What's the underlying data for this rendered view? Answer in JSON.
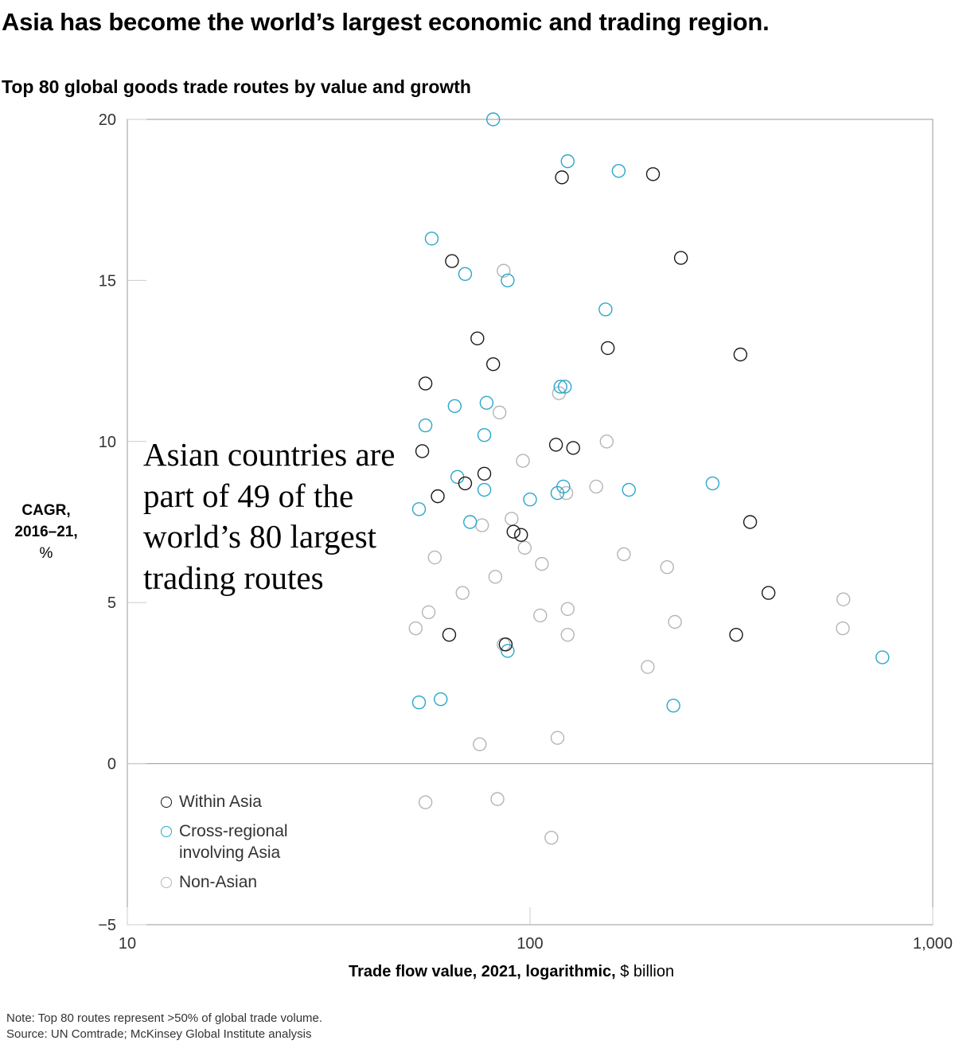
{
  "title": "Asia has become the world’s largest economic and trading region.",
  "subtitle": "Top 80 global goods trade routes by value and growth",
  "annotation": "Asian countries are part of 49 of the world’s 80 largest trading routes",
  "note": "Note: Top 80 routes represent >50% of global trade volume.",
  "source": "Source: UN Comtrade; McKinsey Global Institute analysis",
  "colors": {
    "within_asia": "#1a1a1a",
    "cross_regional": "#2aa7c9",
    "non_asian": "#b5b5b5",
    "axis": "#999999"
  },
  "chart_data": {
    "type": "scatter",
    "title": "Top 80 global goods trade routes by value and growth",
    "xlabel": "Trade flow value, 2021, logarithmic,",
    "xlabel_unit": "$ billion",
    "ylabel": "CAGR, 2016–21,",
    "ylabel_unit": "%",
    "x_scale": "log",
    "xlim": [
      10,
      1000
    ],
    "ylim": [
      -5,
      20
    ],
    "x_ticks": [
      {
        "value": 10,
        "label": "10"
      },
      {
        "value": 100,
        "label": "100"
      },
      {
        "value": 1000,
        "label": "1,000"
      }
    ],
    "y_ticks": [
      {
        "value": -5,
        "label": "−5"
      },
      {
        "value": 0,
        "label": "0"
      },
      {
        "value": 5,
        "label": "5"
      },
      {
        "value": 10,
        "label": "10"
      },
      {
        "value": 15,
        "label": "15"
      },
      {
        "value": 20,
        "label": "20"
      }
    ],
    "legend_position": "bottom-left",
    "series": [
      {
        "name": "Within Asia",
        "key": "within_asia",
        "points": [
          {
            "x": 120,
            "y": 18.2
          },
          {
            "x": 202,
            "y": 18.3
          },
          {
            "x": 237,
            "y": 15.7
          },
          {
            "x": 64,
            "y": 15.6
          },
          {
            "x": 74,
            "y": 13.2
          },
          {
            "x": 156,
            "y": 12.9
          },
          {
            "x": 333,
            "y": 12.7
          },
          {
            "x": 81,
            "y": 12.4
          },
          {
            "x": 55,
            "y": 11.8
          },
          {
            "x": 116,
            "y": 9.9
          },
          {
            "x": 128,
            "y": 9.8
          },
          {
            "x": 54,
            "y": 9.7
          },
          {
            "x": 77,
            "y": 9.0
          },
          {
            "x": 69,
            "y": 8.7
          },
          {
            "x": 59,
            "y": 8.3
          },
          {
            "x": 91,
            "y": 7.2
          },
          {
            "x": 95,
            "y": 7.1
          },
          {
            "x": 352,
            "y": 7.5
          },
          {
            "x": 391,
            "y": 5.3
          },
          {
            "x": 325,
            "y": 4.0
          },
          {
            "x": 63,
            "y": 4.0
          },
          {
            "x": 87,
            "y": 3.7
          }
        ]
      },
      {
        "name": "Cross-regional involving Asia",
        "key": "cross_regional",
        "points": [
          {
            "x": 81,
            "y": 20.0
          },
          {
            "x": 124,
            "y": 18.7
          },
          {
            "x": 166,
            "y": 18.4
          },
          {
            "x": 57,
            "y": 16.3
          },
          {
            "x": 69,
            "y": 15.2
          },
          {
            "x": 88,
            "y": 15.0
          },
          {
            "x": 154,
            "y": 14.1
          },
          {
            "x": 119,
            "y": 11.7
          },
          {
            "x": 122,
            "y": 11.7
          },
          {
            "x": 65,
            "y": 11.1
          },
          {
            "x": 78,
            "y": 11.2
          },
          {
            "x": 55,
            "y": 10.5
          },
          {
            "x": 77,
            "y": 10.2
          },
          {
            "x": 66,
            "y": 8.9
          },
          {
            "x": 77,
            "y": 8.5
          },
          {
            "x": 121,
            "y": 8.6
          },
          {
            "x": 117,
            "y": 8.4
          },
          {
            "x": 176,
            "y": 8.5
          },
          {
            "x": 100,
            "y": 8.2
          },
          {
            "x": 284,
            "y": 8.7
          },
          {
            "x": 53,
            "y": 7.9
          },
          {
            "x": 71,
            "y": 7.5
          },
          {
            "x": 88,
            "y": 3.5
          },
          {
            "x": 53,
            "y": 1.9
          },
          {
            "x": 60,
            "y": 2.0
          },
          {
            "x": 227,
            "y": 1.8
          },
          {
            "x": 750,
            "y": 3.3
          }
        ]
      },
      {
        "name": "Non-Asian",
        "key": "non_asian",
        "points": [
          {
            "x": 86,
            "y": 15.3
          },
          {
            "x": 118,
            "y": 11.5
          },
          {
            "x": 84,
            "y": 10.9
          },
          {
            "x": 155,
            "y": 10.0
          },
          {
            "x": 96,
            "y": 9.4
          },
          {
            "x": 146,
            "y": 8.6
          },
          {
            "x": 123,
            "y": 8.4
          },
          {
            "x": 90,
            "y": 7.6
          },
          {
            "x": 76,
            "y": 7.4
          },
          {
            "x": 97,
            "y": 6.7
          },
          {
            "x": 58,
            "y": 6.4
          },
          {
            "x": 171,
            "y": 6.5
          },
          {
            "x": 107,
            "y": 6.2
          },
          {
            "x": 219,
            "y": 6.1
          },
          {
            "x": 82,
            "y": 5.8
          },
          {
            "x": 68,
            "y": 5.3
          },
          {
            "x": 106,
            "y": 4.6
          },
          {
            "x": 124,
            "y": 4.8
          },
          {
            "x": 56,
            "y": 4.7
          },
          {
            "x": 229,
            "y": 4.4
          },
          {
            "x": 600,
            "y": 5.1
          },
          {
            "x": 52,
            "y": 4.2
          },
          {
            "x": 124,
            "y": 4.0
          },
          {
            "x": 598,
            "y": 4.2
          },
          {
            "x": 196,
            "y": 3.0
          },
          {
            "x": 75,
            "y": 0.6
          },
          {
            "x": 117,
            "y": 0.8
          },
          {
            "x": 55,
            "y": -1.2
          },
          {
            "x": 83,
            "y": -1.1
          },
          {
            "x": 113,
            "y": -2.3
          },
          {
            "x": 86,
            "y": 3.7
          }
        ]
      }
    ]
  }
}
